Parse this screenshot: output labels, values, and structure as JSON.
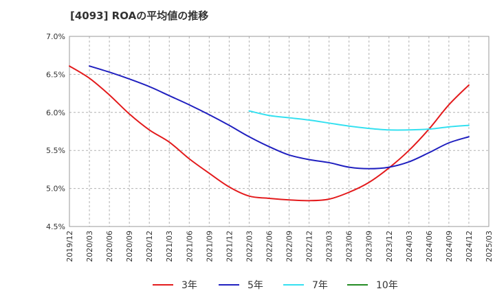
{
  "chart_data": {
    "type": "line",
    "title": "[4093]  ROAの平均値の推移",
    "xlabel": "",
    "ylabel": "",
    "ylim": [
      4.5,
      7.0
    ],
    "y_ticks": [
      "4.5%",
      "5.0%",
      "5.5%",
      "6.0%",
      "6.5%",
      "7.0%"
    ],
    "y_tick_values": [
      4.5,
      5.0,
      5.5,
      6.0,
      6.5,
      7.0
    ],
    "grid": true,
    "legend_position": "bottom",
    "categories": [
      "2019/12",
      "2020/03",
      "2020/06",
      "2020/09",
      "2020/12",
      "2021/03",
      "2021/06",
      "2021/09",
      "2021/12",
      "2022/03",
      "2022/06",
      "2022/09",
      "2022/12",
      "2023/03",
      "2023/06",
      "2023/09",
      "2023/12",
      "2024/03",
      "2024/06",
      "2024/09",
      "2024/12",
      "2025/03"
    ],
    "series": [
      {
        "name": "3年",
        "color": "#e31a1c",
        "values": [
          6.61,
          6.45,
          6.23,
          5.98,
          5.77,
          5.61,
          5.39,
          5.2,
          5.02,
          4.9,
          4.87,
          4.85,
          4.84,
          4.86,
          4.95,
          5.08,
          5.27,
          5.5,
          5.78,
          6.1,
          6.36,
          null
        ]
      },
      {
        "name": "5年",
        "color": "#1f1fbf",
        "values": [
          null,
          6.61,
          6.53,
          6.44,
          6.34,
          6.22,
          6.1,
          5.97,
          5.83,
          5.68,
          5.55,
          5.44,
          5.38,
          5.34,
          5.28,
          5.26,
          5.28,
          5.35,
          5.47,
          5.6,
          5.68,
          null
        ]
      },
      {
        "name": "7年",
        "color": "#33e0f0",
        "values": [
          null,
          null,
          null,
          null,
          null,
          null,
          null,
          null,
          null,
          6.02,
          5.96,
          5.93,
          5.9,
          5.86,
          5.82,
          5.79,
          5.77,
          5.77,
          5.78,
          5.81,
          5.83,
          null
        ]
      },
      {
        "name": "10年",
        "color": "#228b22",
        "values": [
          null,
          null,
          null,
          null,
          null,
          null,
          null,
          null,
          null,
          null,
          null,
          null,
          null,
          null,
          null,
          null,
          null,
          null,
          null,
          null,
          null,
          null
        ]
      }
    ]
  }
}
